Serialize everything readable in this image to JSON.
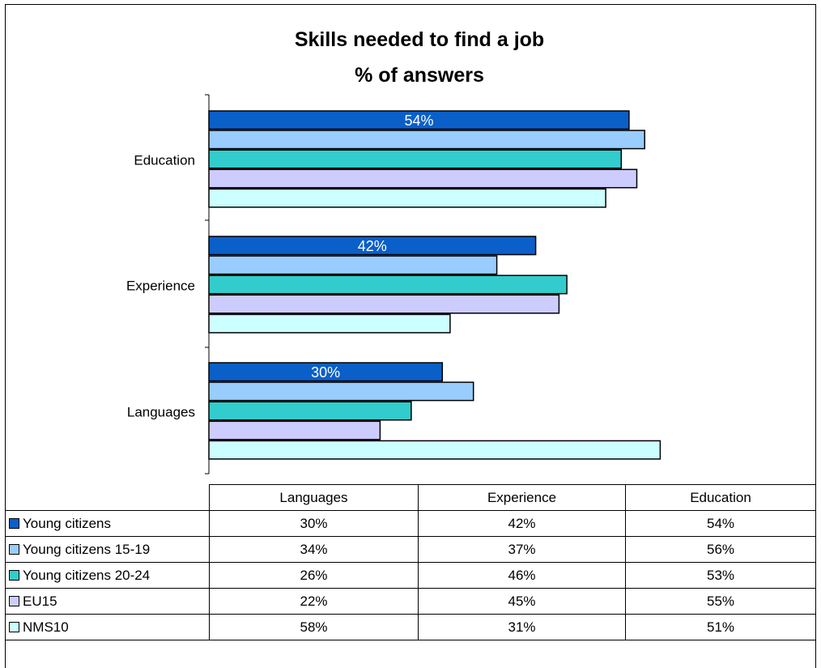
{
  "chart_data": {
    "type": "bar",
    "orientation": "horizontal",
    "title": [
      "Skills needed to find a job",
      "% of answers"
    ],
    "categories": [
      "Education",
      "Experience",
      "Languages"
    ],
    "xlim": [
      0,
      60
    ],
    "grid": false,
    "legend": "data-table-below",
    "series": [
      {
        "name": "Young citizens",
        "color": "#0b5fc9",
        "values": [
          54,
          42,
          30
        ]
      },
      {
        "name": "Young citizens 15-19",
        "color": "#99ccff",
        "values": [
          56,
          37,
          34
        ]
      },
      {
        "name": "Young citizens 20-24",
        "color": "#33cccc",
        "values": [
          53,
          46,
          26
        ]
      },
      {
        "name": "EU15",
        "color": "#ccccff",
        "values": [
          55,
          45,
          22
        ]
      },
      {
        "name": "NMS10",
        "color": "#ccffff",
        "values": [
          51,
          31,
          58
        ]
      }
    ],
    "data_labels": [
      {
        "series": 0,
        "category": 0,
        "text": "54%"
      },
      {
        "series": 0,
        "category": 1,
        "text": "42%"
      },
      {
        "series": 0,
        "category": 2,
        "text": "30%"
      }
    ]
  },
  "table": {
    "columns": [
      "Languages",
      "Experience",
      "Education"
    ],
    "rows": [
      {
        "name": "Young citizens",
        "cells": [
          "30%",
          "42%",
          "54%"
        ]
      },
      {
        "name": "Young citizens 15-19",
        "cells": [
          "34%",
          "37%",
          "56%"
        ]
      },
      {
        "name": "Young citizens 20-24",
        "cells": [
          "26%",
          "46%",
          "53%"
        ]
      },
      {
        "name": "EU15",
        "cells": [
          "22%",
          "45%",
          "55%"
        ]
      },
      {
        "name": "NMS10",
        "cells": [
          "58%",
          "31%",
          "51%"
        ]
      }
    ]
  }
}
